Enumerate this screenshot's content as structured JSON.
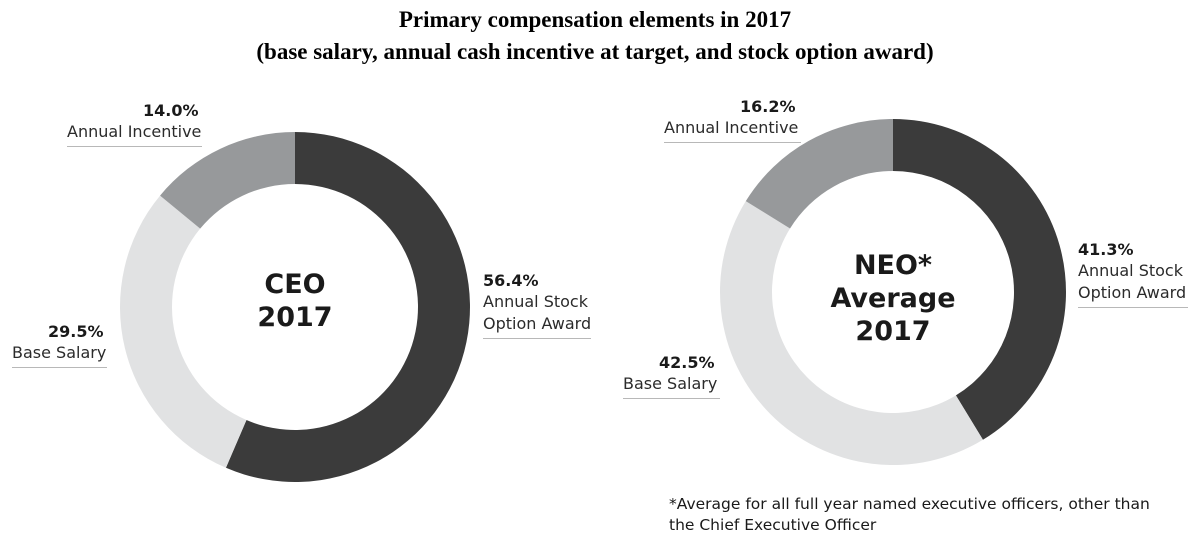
{
  "title_line1": "Primary compensation elements in 2017",
  "title_line2": "(base salary, annual cash incentive at target, and stock option award)",
  "footnote": "*Average for all full year named executive officers, other than the Chief Executive Officer",
  "colors": {
    "stock": "#3b3b3b",
    "base": "#e1e2e3",
    "incentive": "#97999b"
  },
  "chart_data": [
    {
      "type": "pie",
      "variant": "donut",
      "center_lines": [
        "CEO",
        "2017"
      ],
      "slices": [
        {
          "label_lines": [
            "Annual Stock",
            "Option Award"
          ],
          "value": 56.4,
          "pct_text": "56.4%",
          "color_key": "stock"
        },
        {
          "label_lines": [
            "Base Salary"
          ],
          "value": 29.5,
          "pct_text": "29.5%",
          "color_key": "base"
        },
        {
          "label_lines": [
            "Annual Incentive"
          ],
          "value": 14.0,
          "pct_text": "14.0%",
          "color_key": "incentive"
        }
      ]
    },
    {
      "type": "pie",
      "variant": "donut",
      "center_lines": [
        "NEO*",
        "Average",
        "2017"
      ],
      "slices": [
        {
          "label_lines": [
            "Annual Stock",
            "Option Award"
          ],
          "value": 41.3,
          "pct_text": "41.3%",
          "color_key": "stock"
        },
        {
          "label_lines": [
            "Base Salary"
          ],
          "value": 42.5,
          "pct_text": "42.5%",
          "color_key": "base"
        },
        {
          "label_lines": [
            "Annual Incentive"
          ],
          "value": 16.2,
          "pct_text": "16.2%",
          "color_key": "incentive"
        }
      ]
    }
  ]
}
